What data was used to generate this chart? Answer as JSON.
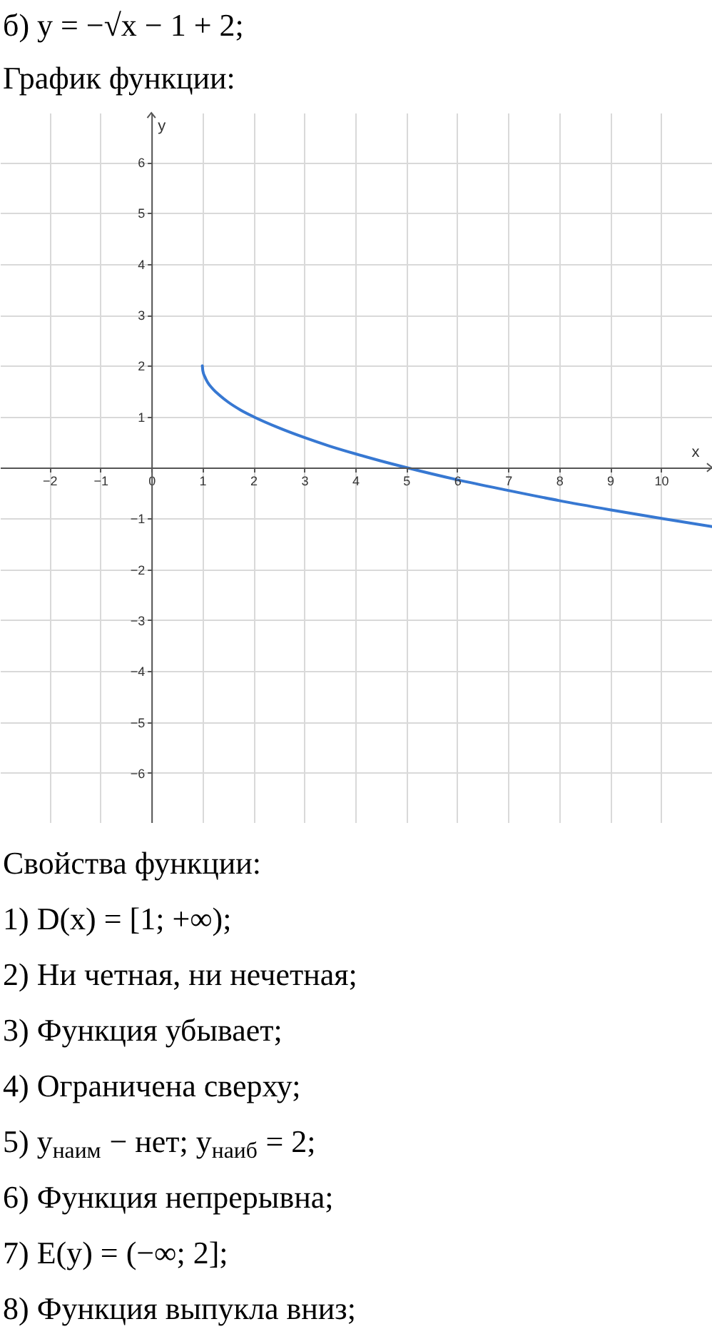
{
  "chart_data": {
    "type": "line",
    "title": "б) y = −√x − 1 + 2;",
    "subtitle": "График функции:",
    "xlabel": "x",
    "ylabel": "y",
    "x": [
      1,
      1.01,
      1.05,
      1.1,
      1.2,
      1.35,
      1.5,
      1.75,
      2,
      2.5,
      3,
      3.5,
      4,
      4.5,
      5,
      6,
      7,
      8,
      9,
      10,
      11
    ],
    "series": [
      {
        "color": "#3778d2",
        "values": [
          2,
          1.9,
          1.78,
          1.68,
          1.55,
          1.41,
          1.29,
          1.13,
          1,
          0.78,
          0.59,
          0.42,
          0.27,
          0.13,
          0,
          -0.24,
          -0.45,
          -0.65,
          -0.83,
          -1,
          -1.16
        ]
      }
    ],
    "xlim": [
      -2.97,
      11
    ],
    "ylim": [
      -6.97,
      6.97
    ],
    "xticks": [
      -2,
      -1,
      0,
      1,
      2,
      3,
      4,
      5,
      6,
      7,
      8,
      9,
      10
    ],
    "yticks": [
      -6,
      -5,
      -4,
      -3,
      -2,
      -1,
      1,
      2,
      3,
      4,
      5,
      6
    ],
    "grid": true,
    "annotations": [
      "Свойства функции:",
      "1) D(x) = [1; +∞);",
      "2) Ни четная, ни нечетная;",
      "3) Функция убывает;",
      "4) Ограничена сверху;",
      "5) y$_{наим}$ − нет; y$_{наиб}$ = 2;",
      "6) Функция непрерывна;",
      "7) E(y) = (−∞; 2];",
      "8) Функция выпукла вниз;"
    ]
  }
}
